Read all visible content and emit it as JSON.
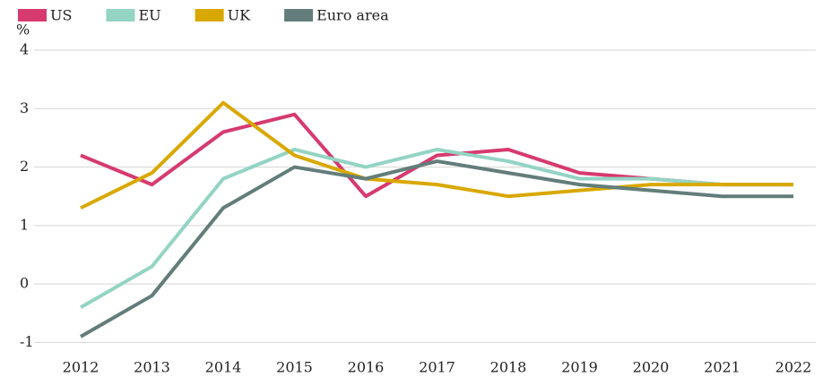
{
  "chart_data": {
    "type": "line",
    "y_label": "%",
    "categories": [
      "2012",
      "2013",
      "2014",
      "2015",
      "2016",
      "2017",
      "2018",
      "2019",
      "2020",
      "2021",
      "2022"
    ],
    "series": [
      {
        "name": "US",
        "color": "#d63a6e",
        "values": [
          2.2,
          1.7,
          2.6,
          2.9,
          1.5,
          2.2,
          2.3,
          1.9,
          1.8,
          1.7,
          1.7
        ]
      },
      {
        "name": "EU",
        "color": "#93d4c3",
        "values": [
          -0.4,
          0.3,
          1.8,
          2.3,
          2.0,
          2.3,
          2.1,
          1.8,
          1.8,
          1.7,
          1.7
        ]
      },
      {
        "name": "UK",
        "color": "#d9a800",
        "values": [
          1.3,
          1.9,
          3.1,
          2.2,
          1.8,
          1.7,
          1.5,
          1.6,
          1.7,
          1.7,
          1.7
        ]
      },
      {
        "name": "Euro area",
        "color": "#637d7a",
        "values": [
          -0.9,
          -0.2,
          1.3,
          2.0,
          1.8,
          2.1,
          1.9,
          1.7,
          1.6,
          1.5,
          1.5
        ]
      }
    ],
    "ylim": [
      -1.3,
      4
    ],
    "yticks": [
      -1,
      0,
      1,
      2,
      3,
      4
    ],
    "grid": true,
    "legend": "top"
  }
}
